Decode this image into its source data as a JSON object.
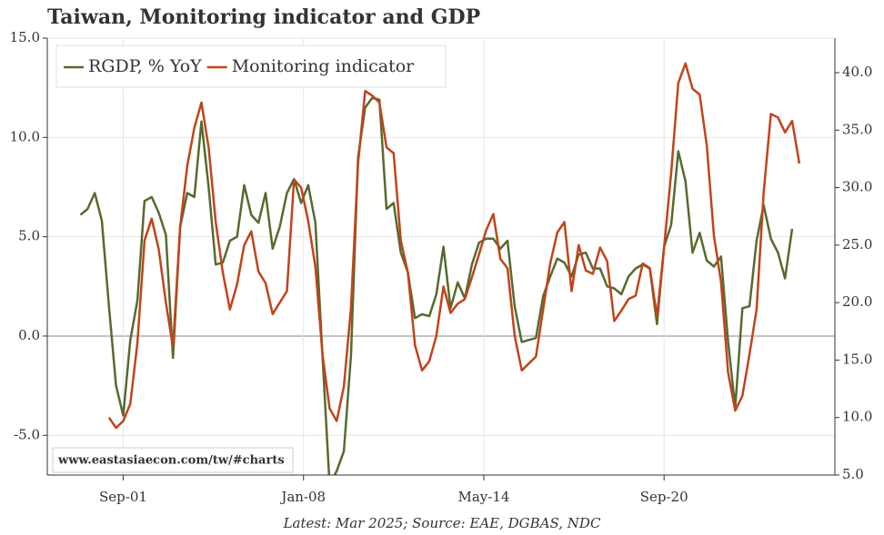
{
  "chart_data": {
    "type": "line",
    "title": "Taiwan, Monitoring indicator and GDP",
    "source": "Latest: Mar 2025; Source: EAE, DGBAS, NDC",
    "watermark": "www.eastasiaecon.com/tw/#charts",
    "x": [
      "2000-03",
      "2000-06",
      "2000-09",
      "2000-12",
      "2001-03",
      "2001-06",
      "2001-09",
      "2001-12",
      "2002-03",
      "2002-06",
      "2002-09",
      "2002-12",
      "2003-03",
      "2003-06",
      "2003-09",
      "2003-12",
      "2004-03",
      "2004-06",
      "2004-09",
      "2004-12",
      "2005-03",
      "2005-06",
      "2005-09",
      "2005-12",
      "2006-03",
      "2006-06",
      "2006-09",
      "2006-12",
      "2007-03",
      "2007-06",
      "2007-09",
      "2007-12",
      "2008-03",
      "2008-06",
      "2008-09",
      "2008-12",
      "2009-03",
      "2009-06",
      "2009-09",
      "2009-12",
      "2010-03",
      "2010-06",
      "2010-09",
      "2010-12",
      "2011-03",
      "2011-06",
      "2011-09",
      "2011-12",
      "2012-03",
      "2012-06",
      "2012-09",
      "2012-12",
      "2013-03",
      "2013-06",
      "2013-09",
      "2013-12",
      "2014-03",
      "2014-06",
      "2014-09",
      "2014-12",
      "2015-03",
      "2015-06",
      "2015-09",
      "2015-12",
      "2016-03",
      "2016-06",
      "2016-09",
      "2016-12",
      "2017-03",
      "2017-06",
      "2017-09",
      "2017-12",
      "2018-03",
      "2018-06",
      "2018-09",
      "2018-12",
      "2019-03",
      "2019-06",
      "2019-09",
      "2019-12",
      "2020-03",
      "2020-06",
      "2020-09",
      "2020-12",
      "2021-03",
      "2021-06",
      "2021-09",
      "2021-12",
      "2022-03",
      "2022-06",
      "2022-09",
      "2022-12",
      "2023-03",
      "2023-06",
      "2023-09",
      "2023-12",
      "2024-03",
      "2024-06",
      "2024-09",
      "2024-12",
      "2025-03",
      "2025-06"
    ],
    "series": [
      {
        "name": "RGDP, % YoY",
        "color": "#556b2f",
        "values": [
          6.1,
          6.4,
          7.2,
          5.8,
          1.5,
          -2.5,
          -4.0,
          -0.2,
          1.8,
          6.8,
          7.0,
          6.2,
          5.1,
          -1.1,
          5.5,
          7.2,
          7.0,
          10.8,
          7.5,
          3.6,
          3.7,
          4.8,
          5.0,
          7.6,
          6.1,
          5.7,
          7.2,
          4.4,
          5.5,
          7.2,
          7.9,
          6.7,
          7.6,
          5.7,
          -1.0,
          -7.5,
          -6.8,
          -5.8,
          -1.0,
          9.0,
          11.5,
          12.0,
          11.9,
          6.4,
          6.7,
          4.2,
          3.2,
          0.9,
          1.1,
          1.0,
          2.1,
          4.5,
          1.4,
          2.7,
          1.9,
          3.6,
          4.7,
          4.9,
          4.9,
          4.4,
          4.8,
          1.5,
          -0.3,
          -0.2,
          -0.1,
          2.0,
          3.0,
          3.9,
          3.7,
          3.0,
          4.1,
          4.2,
          3.4,
          3.4,
          2.5,
          2.4,
          2.1,
          3.0,
          3.4,
          3.6,
          3.4,
          0.6,
          4.5,
          5.6,
          9.3,
          7.8,
          4.2,
          5.2,
          3.8,
          3.5,
          4.0,
          -0.3,
          -3.6,
          1.4,
          1.5,
          4.8,
          6.6,
          4.9,
          4.2,
          2.9,
          5.4,
          null
        ]
      },
      {
        "name": "Monitoring indicator",
        "color": "#c0441b",
        "axis": "y2",
        "values": [
          null,
          null,
          null,
          null,
          10.0,
          9.1,
          9.7,
          11.2,
          16.5,
          25.4,
          27.3,
          24.6,
          20.0,
          16.1,
          26.6,
          31.9,
          35.2,
          37.4,
          33.5,
          27.0,
          22.6,
          19.4,
          21.6,
          25.0,
          26.2,
          22.7,
          21.7,
          19.0,
          20.0,
          21.0,
          30.7,
          30.0,
          27.1,
          23.1,
          15.5,
          10.8,
          9.7,
          12.7,
          19.5,
          32.1,
          38.4,
          38.0,
          37.4,
          33.5,
          33.0,
          25.4,
          22.6,
          16.3,
          14.1,
          14.9,
          17.1,
          21.4,
          19.1,
          19.9,
          20.3,
          22.2,
          24.2,
          26.3,
          27.7,
          23.8,
          23.0,
          17.1,
          14.1,
          14.7,
          15.3,
          19.4,
          23.4,
          26.1,
          27.0,
          21.0,
          25.0,
          22.8,
          22.5,
          24.8,
          23.6,
          18.4,
          19.3,
          20.3,
          20.6,
          23.4,
          23.0,
          18.8,
          24.8,
          31.3,
          39.1,
          40.8,
          38.6,
          38.1,
          33.7,
          25.8,
          21.8,
          13.9,
          10.6,
          11.9,
          15.5,
          19.4,
          29.6,
          36.4,
          36.1,
          34.8,
          35.8,
          32.1
        ]
      }
    ],
    "xlim": [
      "1999-01",
      "2026-09"
    ],
    "xticks": [
      {
        "value": "2001-09",
        "label": "Sep-01"
      },
      {
        "value": "2008-01",
        "label": "Jan-08"
      },
      {
        "value": "2014-05",
        "label": "May-14"
      },
      {
        "value": "2020-09",
        "label": "Sep-20"
      }
    ],
    "ylim": [
      -7,
      15
    ],
    "yticks": [
      {
        "value": -5,
        "label": "-5.0"
      },
      {
        "value": 0,
        "label": "0.0"
      },
      {
        "value": 5,
        "label": "5.0"
      },
      {
        "value": 10,
        "label": "10.0"
      },
      {
        "value": 15,
        "label": "15.0"
      }
    ],
    "y2lim": [
      5,
      43
    ],
    "y2ticks": [
      {
        "value": 5,
        "label": "5.0"
      },
      {
        "value": 10,
        "label": "10.0"
      },
      {
        "value": 15,
        "label": "15.0"
      },
      {
        "value": 20,
        "label": "20.0"
      },
      {
        "value": 25,
        "label": "25.0"
      },
      {
        "value": 30,
        "label": "30.0"
      },
      {
        "value": 35,
        "label": "35.0"
      },
      {
        "value": 40,
        "label": "40.0"
      }
    ],
    "grid": true,
    "legend": "upper left"
  }
}
